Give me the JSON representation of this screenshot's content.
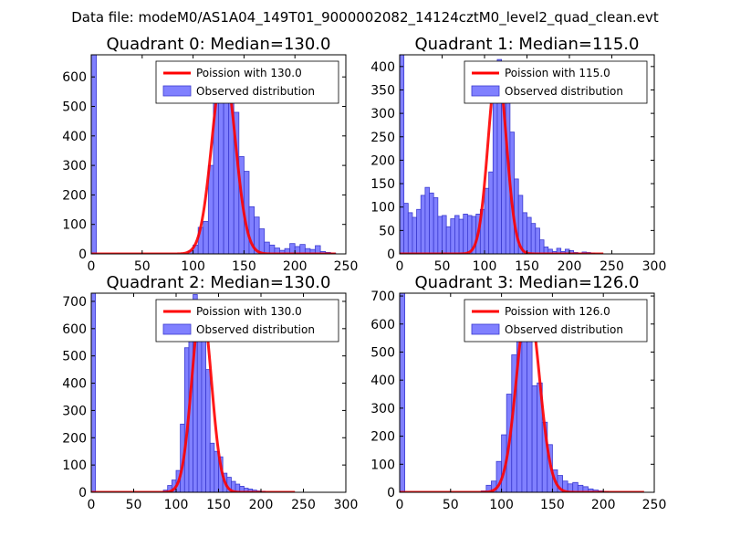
{
  "suptitle": "Data file: modeM0/AS1A04_149T01_9000002082_14124cztM0_level2_quad_clean.evt",
  "colors": {
    "bar_fill": "#8080ff",
    "bar_edge": "#3b3bd0",
    "line": "#ff0000",
    "axis": "#000000",
    "background": "#ffffff"
  },
  "chart_data": [
    {
      "type": "bar",
      "title": "Quadrant 0: Median=130.0",
      "xlim": [
        0,
        250
      ],
      "ylim": [
        0,
        675
      ],
      "xticks": [
        0,
        50,
        100,
        150,
        200,
        250
      ],
      "yticks": [
        0,
        100,
        200,
        300,
        400,
        500,
        600
      ],
      "bin_width": 5,
      "legend": [
        "Poission with 130.0",
        "Observed distribution"
      ],
      "legend_loc": "upper right",
      "poisson_mean": 130.0,
      "poisson_peak": 640,
      "bins": [
        [
          0,
          675
        ],
        [
          95,
          10
        ],
        [
          100,
          30
        ],
        [
          105,
          90
        ],
        [
          110,
          110
        ],
        [
          115,
          300
        ],
        [
          120,
          560
        ],
        [
          125,
          625
        ],
        [
          130,
          590
        ],
        [
          135,
          560
        ],
        [
          140,
          480
        ],
        [
          145,
          330
        ],
        [
          150,
          280
        ],
        [
          155,
          160
        ],
        [
          160,
          125
        ],
        [
          165,
          85
        ],
        [
          170,
          40
        ],
        [
          175,
          30
        ],
        [
          180,
          20
        ],
        [
          185,
          12
        ],
        [
          190,
          18
        ],
        [
          195,
          35
        ],
        [
          200,
          25
        ],
        [
          205,
          32
        ],
        [
          210,
          18
        ],
        [
          215,
          15
        ],
        [
          220,
          28
        ],
        [
          225,
          8
        ],
        [
          230,
          5
        ],
        [
          235,
          3
        ]
      ]
    },
    {
      "type": "bar",
      "title": "Quadrant 1: Median=115.0",
      "xlim": [
        0,
        300
      ],
      "ylim": [
        0,
        425
      ],
      "xticks": [
        0,
        50,
        100,
        150,
        200,
        250,
        300
      ],
      "yticks": [
        0,
        50,
        100,
        150,
        200,
        250,
        300,
        350,
        400
      ],
      "bin_width": 5,
      "legend": [
        "Poission with 115.0",
        "Observed distribution"
      ],
      "legend_loc": "upper right",
      "poisson_mean": 115.0,
      "poisson_peak": 400,
      "bins": [
        [
          0,
          425
        ],
        [
          5,
          108
        ],
        [
          10,
          88
        ],
        [
          15,
          78
        ],
        [
          20,
          95
        ],
        [
          25,
          125
        ],
        [
          30,
          142
        ],
        [
          35,
          130
        ],
        [
          40,
          120
        ],
        [
          45,
          80
        ],
        [
          50,
          82
        ],
        [
          55,
          58
        ],
        [
          60,
          75
        ],
        [
          65,
          82
        ],
        [
          70,
          74
        ],
        [
          75,
          85
        ],
        [
          80,
          82
        ],
        [
          85,
          80
        ],
        [
          90,
          85
        ],
        [
          95,
          95
        ],
        [
          100,
          140
        ],
        [
          105,
          175
        ],
        [
          110,
          375
        ],
        [
          115,
          415
        ],
        [
          120,
          350
        ],
        [
          125,
          375
        ],
        [
          130,
          260
        ],
        [
          135,
          160
        ],
        [
          140,
          125
        ],
        [
          145,
          88
        ],
        [
          150,
          78
        ],
        [
          155,
          65
        ],
        [
          160,
          55
        ],
        [
          165,
          30
        ],
        [
          170,
          15
        ],
        [
          175,
          10
        ],
        [
          180,
          5
        ],
        [
          185,
          12
        ],
        [
          190,
          5
        ],
        [
          195,
          10
        ],
        [
          200,
          7
        ],
        [
          205,
          3
        ],
        [
          210,
          2
        ],
        [
          215,
          4
        ],
        [
          220,
          3
        ],
        [
          225,
          2
        ]
      ]
    },
    {
      "type": "bar",
      "title": "Quadrant 2: Median=130.0",
      "xlim": [
        0,
        300
      ],
      "ylim": [
        0,
        730
      ],
      "xticks": [
        0,
        50,
        100,
        150,
        200,
        250,
        300
      ],
      "yticks": [
        0,
        100,
        200,
        300,
        400,
        500,
        600,
        700
      ],
      "bin_width": 5,
      "legend": [
        "Poission with 130.0",
        "Observed distribution"
      ],
      "legend_loc": "upper right",
      "poisson_mean": 130.0,
      "poisson_peak": 690,
      "bins": [
        [
          0,
          730
        ],
        [
          85,
          8
        ],
        [
          90,
          25
        ],
        [
          95,
          45
        ],
        [
          100,
          80
        ],
        [
          105,
          250
        ],
        [
          110,
          530
        ],
        [
          115,
          620
        ],
        [
          120,
          725
        ],
        [
          125,
          630
        ],
        [
          130,
          570
        ],
        [
          135,
          450
        ],
        [
          140,
          180
        ],
        [
          145,
          150
        ],
        [
          150,
          130
        ],
        [
          155,
          70
        ],
        [
          160,
          55
        ],
        [
          165,
          40
        ],
        [
          170,
          30
        ],
        [
          175,
          22
        ],
        [
          180,
          15
        ],
        [
          185,
          12
        ],
        [
          190,
          8
        ],
        [
          195,
          5
        ],
        [
          200,
          4
        ]
      ]
    },
    {
      "type": "bar",
      "title": "Quadrant 3: Median=126.0",
      "xlim": [
        0,
        250
      ],
      "ylim": [
        0,
        710
      ],
      "xticks": [
        0,
        50,
        100,
        150,
        200,
        250
      ],
      "yticks": [
        0,
        100,
        200,
        300,
        400,
        500,
        600,
        700
      ],
      "bin_width": 5,
      "legend": [
        "Poission with 126.0",
        "Observed distribution"
      ],
      "legend_loc": "upper right",
      "poisson_mean": 126.0,
      "poisson_peak": 680,
      "bins": [
        [
          0,
          710
        ],
        [
          80,
          5
        ],
        [
          85,
          25
        ],
        [
          90,
          40
        ],
        [
          95,
          110
        ],
        [
          100,
          205
        ],
        [
          105,
          350
        ],
        [
          110,
          490
        ],
        [
          115,
          580
        ],
        [
          120,
          685
        ],
        [
          125,
          660
        ],
        [
          130,
          380
        ],
        [
          135,
          390
        ],
        [
          140,
          250
        ],
        [
          145,
          170
        ],
        [
          150,
          80
        ],
        [
          155,
          60
        ],
        [
          160,
          40
        ],
        [
          165,
          30
        ],
        [
          170,
          35
        ],
        [
          175,
          25
        ],
        [
          180,
          20
        ],
        [
          185,
          12
        ],
        [
          190,
          8
        ],
        [
          195,
          5
        ],
        [
          200,
          3
        ]
      ]
    }
  ]
}
